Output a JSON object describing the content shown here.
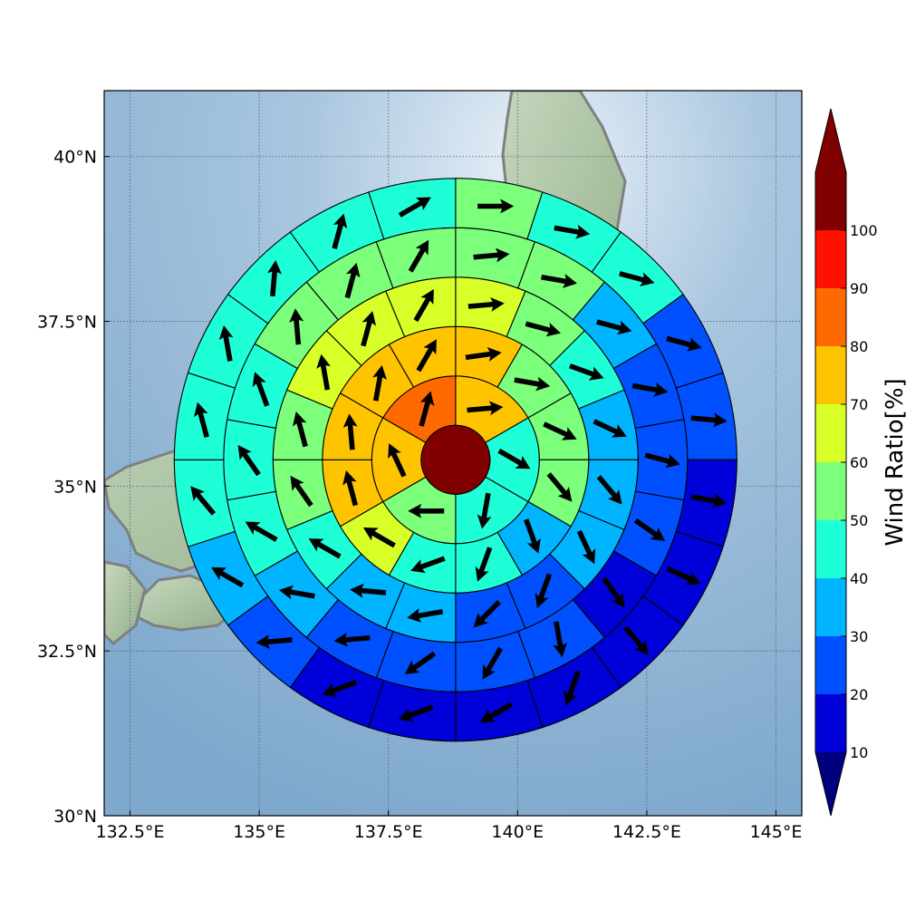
{
  "chart_data": {
    "type": "heatmap",
    "subtype": "polar-sector wind ratio map with wind vectors over map of Japan",
    "x_axis": {
      "range": [
        132.0,
        145.5
      ],
      "ticks": [
        132.5,
        135,
        137.5,
        140,
        142.5,
        145
      ],
      "tick_labels": [
        "132.5°E",
        "135°E",
        "137.5°E",
        "140°E",
        "142.5°E",
        "145°E"
      ]
    },
    "y_axis": {
      "range": [
        30.0,
        41.0
      ],
      "ticks": [
        30,
        32.5,
        35,
        37.5,
        40
      ],
      "tick_labels": [
        "30°N",
        "32.5°N",
        "35°N",
        "37.5°N",
        "40°N"
      ]
    },
    "grid": true,
    "center": {
      "lon": 138.8,
      "lat": 35.4
    },
    "colorbar": {
      "label": "Wind Ratio[%]",
      "tick_values": [
        10,
        20,
        30,
        40,
        50,
        60,
        70,
        80,
        90,
        100
      ],
      "tick_labels": [
        "10",
        "20",
        "30",
        "40",
        "50",
        "60",
        "70",
        "80",
        "90",
        "100"
      ],
      "extend": "both",
      "colors": [
        "#0000d8",
        "#0050ff",
        "#00b4ff",
        "#1effd8",
        "#7cff7a",
        "#d8ff28",
        "#ffc400",
        "#ff6a00",
        "#ff1100",
        "#800000"
      ],
      "under_color": "#00007f",
      "over_color": "#800000"
    },
    "center_cell": {
      "value": 100,
      "color": "#800000"
    },
    "rings": [
      {
        "ring": 1,
        "sectors": [
          {
            "dir": 0,
            "value": 75,
            "vector_deg": 85
          },
          {
            "dir": 60,
            "value": 45,
            "vector_deg": 120
          },
          {
            "dir": 120,
            "value": 45,
            "vector_deg": 190
          },
          {
            "dir": 180,
            "value": 55,
            "vector_deg": 270
          },
          {
            "dir": 240,
            "value": 75,
            "vector_deg": 335
          },
          {
            "dir": 300,
            "value": 85,
            "vector_deg": 15
          }
        ]
      },
      {
        "ring": 2,
        "sectors": [
          {
            "dir": 0,
            "value": 75,
            "vector_deg": 82
          },
          {
            "dir": 30,
            "value": 55,
            "vector_deg": 100
          },
          {
            "dir": 60,
            "value": 55,
            "vector_deg": 115
          },
          {
            "dir": 90,
            "value": 55,
            "vector_deg": 140
          },
          {
            "dir": 120,
            "value": 35,
            "vector_deg": 160
          },
          {
            "dir": 150,
            "value": 45,
            "vector_deg": 200
          },
          {
            "dir": 180,
            "value": 45,
            "vector_deg": 250
          },
          {
            "dir": 210,
            "value": 65,
            "vector_deg": 300
          },
          {
            "dir": 240,
            "value": 75,
            "vector_deg": 345
          },
          {
            "dir": 270,
            "value": 75,
            "vector_deg": 355
          },
          {
            "dir": 300,
            "value": 75,
            "vector_deg": 10
          },
          {
            "dir": 330,
            "value": 75,
            "vector_deg": 30
          }
        ]
      },
      {
        "ring": 3,
        "sectors": [
          {
            "dir": 0,
            "value": 65,
            "vector_deg": 85
          },
          {
            "dir": 22.5,
            "value": 55,
            "vector_deg": 105
          },
          {
            "dir": 45,
            "value": 45,
            "vector_deg": 110
          },
          {
            "dir": 67.5,
            "value": 35,
            "vector_deg": 115
          },
          {
            "dir": 90,
            "value": 35,
            "vector_deg": 140
          },
          {
            "dir": 112.5,
            "value": 35,
            "vector_deg": 155
          },
          {
            "dir": 135,
            "value": 25,
            "vector_deg": 200
          },
          {
            "dir": 157.5,
            "value": 25,
            "vector_deg": 225
          },
          {
            "dir": 180,
            "value": 35,
            "vector_deg": 260
          },
          {
            "dir": 202.5,
            "value": 35,
            "vector_deg": 275
          },
          {
            "dir": 225,
            "value": 45,
            "vector_deg": 300
          },
          {
            "dir": 247.5,
            "value": 55,
            "vector_deg": 325
          },
          {
            "dir": 270,
            "value": 55,
            "vector_deg": 345
          },
          {
            "dir": 292.5,
            "value": 65,
            "vector_deg": 350
          },
          {
            "dir": 315,
            "value": 65,
            "vector_deg": 15
          },
          {
            "dir": 337.5,
            "value": 65,
            "vector_deg": 30
          }
        ]
      },
      {
        "ring": 4,
        "sectors": [
          {
            "dir": 0,
            "value": 55,
            "vector_deg": 85
          },
          {
            "dir": 20,
            "value": 55,
            "vector_deg": 100
          },
          {
            "dir": 40,
            "value": 35,
            "vector_deg": 105
          },
          {
            "dir": 60,
            "value": 25,
            "vector_deg": 100
          },
          {
            "dir": 80,
            "value": 25,
            "vector_deg": 105
          },
          {
            "dir": 100,
            "value": 25,
            "vector_deg": 125
          },
          {
            "dir": 120,
            "value": 15,
            "vector_deg": 145
          },
          {
            "dir": 140,
            "value": 25,
            "vector_deg": 170
          },
          {
            "dir": 160,
            "value": 25,
            "vector_deg": 210
          },
          {
            "dir": 180,
            "value": 25,
            "vector_deg": 235
          },
          {
            "dir": 200,
            "value": 25,
            "vector_deg": 265
          },
          {
            "dir": 220,
            "value": 35,
            "vector_deg": 280
          },
          {
            "dir": 240,
            "value": 45,
            "vector_deg": 300
          },
          {
            "dir": 260,
            "value": 45,
            "vector_deg": 325
          },
          {
            "dir": 280,
            "value": 45,
            "vector_deg": 340
          },
          {
            "dir": 300,
            "value": 55,
            "vector_deg": 355
          },
          {
            "dir": 320,
            "value": 55,
            "vector_deg": 15
          },
          {
            "dir": 340,
            "value": 55,
            "vector_deg": 30
          }
        ]
      },
      {
        "ring": 5,
        "sectors": [
          {
            "dir": 0,
            "value": 55,
            "vector_deg": 90
          },
          {
            "dir": 18,
            "value": 45,
            "vector_deg": 100
          },
          {
            "dir": 36,
            "value": 45,
            "vector_deg": 105
          },
          {
            "dir": 54,
            "value": 25,
            "vector_deg": 105
          },
          {
            "dir": 72,
            "value": 25,
            "vector_deg": 95
          },
          {
            "dir": 90,
            "value": 15,
            "vector_deg": 100
          },
          {
            "dir": 108,
            "value": 15,
            "vector_deg": 115
          },
          {
            "dir": 126,
            "value": 15,
            "vector_deg": 140
          },
          {
            "dir": 144,
            "value": 15,
            "vector_deg": 200
          },
          {
            "dir": 162,
            "value": 15,
            "vector_deg": 240
          },
          {
            "dir": 180,
            "value": 15,
            "vector_deg": 250
          },
          {
            "dir": 198,
            "value": 15,
            "vector_deg": 250
          },
          {
            "dir": 216,
            "value": 25,
            "vector_deg": 265
          },
          {
            "dir": 234,
            "value": 35,
            "vector_deg": 300
          },
          {
            "dir": 252,
            "value": 45,
            "vector_deg": 320
          },
          {
            "dir": 270,
            "value": 45,
            "vector_deg": 345
          },
          {
            "dir": 288,
            "value": 45,
            "vector_deg": 350
          },
          {
            "dir": 306,
            "value": 45,
            "vector_deg": 5
          },
          {
            "dir": 324,
            "value": 45,
            "vector_deg": 15
          },
          {
            "dir": 342,
            "value": 45,
            "vector_deg": 60
          }
        ]
      }
    ]
  }
}
